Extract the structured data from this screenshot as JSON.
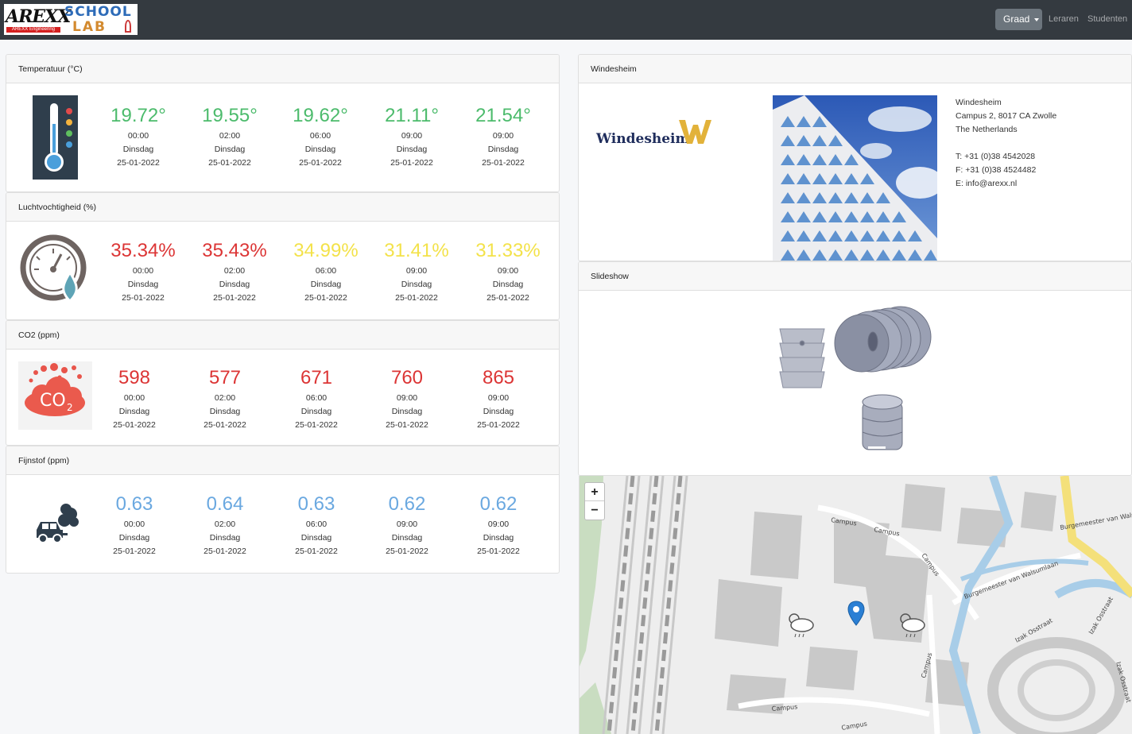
{
  "navbar": {
    "logo": {
      "brand": "AREXX",
      "brand_sub": "AREXX Engineering",
      "school": "SCHOOL",
      "lab": "LAB"
    },
    "dropdown_label": "Graad",
    "links": [
      "Leraren",
      "Studenten"
    ]
  },
  "temperature": {
    "title": "Temperatuur (°C)",
    "color": "#4cbb6c",
    "readings": [
      {
        "value": "19.72°",
        "time": "00:00",
        "day": "Dinsdag",
        "date": "25-01-2022"
      },
      {
        "value": "19.55°",
        "time": "02:00",
        "day": "Dinsdag",
        "date": "25-01-2022"
      },
      {
        "value": "19.62°",
        "time": "06:00",
        "day": "Dinsdag",
        "date": "25-01-2022"
      },
      {
        "value": "21.11°",
        "time": "09:00",
        "day": "Dinsdag",
        "date": "25-01-2022"
      },
      {
        "value": "21.54°",
        "time": "09:00",
        "day": "Dinsdag",
        "date": "25-01-2022"
      }
    ]
  },
  "humidity": {
    "title": "Luchtvochtigheid (%)",
    "readings": [
      {
        "value": "35.34%",
        "time": "00:00",
        "day": "Dinsdag",
        "date": "25-01-2022",
        "color": "#dc3535"
      },
      {
        "value": "35.43%",
        "time": "02:00",
        "day": "Dinsdag",
        "date": "25-01-2022",
        "color": "#dc3535"
      },
      {
        "value": "34.99%",
        "time": "06:00",
        "day": "Dinsdag",
        "date": "25-01-2022",
        "color": "#f3e24a"
      },
      {
        "value": "31.41%",
        "time": "09:00",
        "day": "Dinsdag",
        "date": "25-01-2022",
        "color": "#f3e24a"
      },
      {
        "value": "31.33%",
        "time": "09:00",
        "day": "Dinsdag",
        "date": "25-01-2022",
        "color": "#f3e24a"
      }
    ]
  },
  "co2": {
    "title": "CO2 (ppm)",
    "color": "#dc3535",
    "icon_text": "CO",
    "icon_sub": "2",
    "readings": [
      {
        "value": "598",
        "time": "00:00",
        "day": "Dinsdag",
        "date": "25-01-2022"
      },
      {
        "value": "577",
        "time": "02:00",
        "day": "Dinsdag",
        "date": "25-01-2022"
      },
      {
        "value": "671",
        "time": "06:00",
        "day": "Dinsdag",
        "date": "25-01-2022"
      },
      {
        "value": "760",
        "time": "09:00",
        "day": "Dinsdag",
        "date": "25-01-2022"
      },
      {
        "value": "865",
        "time": "09:00",
        "day": "Dinsdag",
        "date": "25-01-2022"
      }
    ]
  },
  "particulate": {
    "title": "Fijnstof (ppm)",
    "color": "#6aa8e0",
    "readings": [
      {
        "value": "0.63",
        "time": "00:00",
        "day": "Dinsdag",
        "date": "25-01-2022"
      },
      {
        "value": "0.64",
        "time": "02:00",
        "day": "Dinsdag",
        "date": "25-01-2022"
      },
      {
        "value": "0.63",
        "time": "06:00",
        "day": "Dinsdag",
        "date": "25-01-2022"
      },
      {
        "value": "0.62",
        "time": "09:00",
        "day": "Dinsdag",
        "date": "25-01-2022"
      },
      {
        "value": "0.62",
        "time": "09:00",
        "day": "Dinsdag",
        "date": "25-01-2022"
      }
    ]
  },
  "info": {
    "title": "Windesheim",
    "logo_text": "Windesheim",
    "name": "Windesheim",
    "address": "Campus 2, 8017 CA Zwolle",
    "country": "The Netherlands",
    "phone": "T: +31 (0)38 4542028",
    "fax": "F: +31 (0)38 4524482",
    "email": "E: info@arexx.nl"
  },
  "slideshow": {
    "title": "Slideshow"
  },
  "map": {
    "zoom_in": "+",
    "zoom_out": "−",
    "labels": [
      "Campus",
      "Campus",
      "Campus",
      "Campus",
      "Campus",
      "Burgemeester van Walsumlaan",
      "Burgemeester van Walsumlaan",
      "Izak Osstraat",
      "Izak Osstraat",
      "Izak Osstraat",
      "Campus"
    ]
  }
}
